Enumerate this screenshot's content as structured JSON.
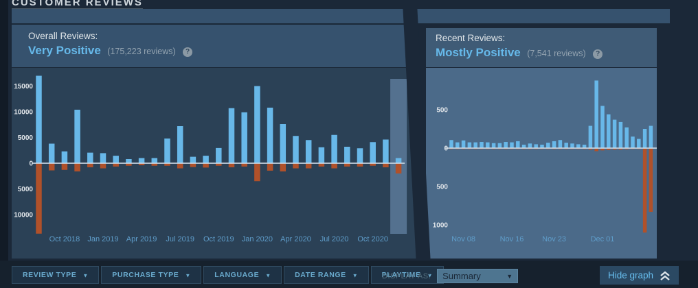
{
  "page": {
    "title": "CUSTOMER REVIEWS"
  },
  "overall_panel": {
    "label": "Overall Reviews:",
    "rating": "Very Positive",
    "count_text": "(175,223 reviews)",
    "help_glyph": "?"
  },
  "recent_panel": {
    "label": "Recent Reviews:",
    "rating": "Mostly Positive",
    "count_text": "(7,541 reviews)",
    "help_glyph": "?"
  },
  "chart_data": [
    {
      "type": "bar",
      "title": "Overall Reviews histogram",
      "x_unit": "month",
      "series": [
        {
          "name": "positive reviews",
          "color": "#68b8e9",
          "values": [
            17000,
            3800,
            2300,
            10400,
            2050,
            1950,
            1450,
            800,
            1000,
            1000,
            4800,
            7200,
            1250,
            1450,
            2950,
            10700,
            9900,
            15000,
            10800,
            7600,
            5300,
            4500,
            3100,
            5500,
            3200,
            2900,
            4100,
            4600,
            1000
          ]
        },
        {
          "name": "negative reviews",
          "color": "#b0512a",
          "values": [
            -13700,
            -1400,
            -1300,
            -1600,
            -800,
            -1000,
            -650,
            -500,
            -400,
            -500,
            -500,
            -1000,
            -750,
            -850,
            -500,
            -800,
            -650,
            -3500,
            -1450,
            -1600,
            -1000,
            -1000,
            -650,
            -1000,
            -650,
            -650,
            -500,
            -800,
            -2000
          ]
        }
      ],
      "x_ticks": [
        {
          "label": "Oct 2018",
          "bar_index": 2
        },
        {
          "label": "Jan 2019",
          "bar_index": 5
        },
        {
          "label": "Apr 2019",
          "bar_index": 8
        },
        {
          "label": "Jul 2019",
          "bar_index": 11
        },
        {
          "label": "Oct 2019",
          "bar_index": 14
        },
        {
          "label": "Jan 2020",
          "bar_index": 17
        },
        {
          "label": "Apr 2020",
          "bar_index": 20
        },
        {
          "label": "Jul 2020",
          "bar_index": 23
        },
        {
          "label": "Oct 2020",
          "bar_index": 26
        }
      ],
      "y_ticks": [
        {
          "value": 15000,
          "label": "15000"
        },
        {
          "value": 10000,
          "label": "10000"
        },
        {
          "value": 5000,
          "label": "5000"
        },
        {
          "value": 0,
          "label": "0"
        },
        {
          "value": -5000,
          "label": "5000"
        },
        {
          "value": -10000,
          "label": "10000"
        }
      ],
      "ylim": [
        -14200,
        18500
      ],
      "grid": false,
      "legend": "none",
      "highlight_last_bars": 1
    },
    {
      "type": "bar",
      "title": "Recent Reviews histogram",
      "x_unit": "day",
      "series": [
        {
          "name": "positive reviews",
          "color": "#68b8e9",
          "values": [
            105,
            75,
            100,
            75,
            75,
            80,
            75,
            65,
            65,
            80,
            75,
            90,
            45,
            60,
            50,
            45,
            70,
            90,
            105,
            70,
            60,
            50,
            45,
            290,
            880,
            550,
            440,
            370,
            340,
            270,
            150,
            120,
            250,
            290
          ]
        },
        {
          "name": "negative reviews",
          "color": "#b0512a",
          "values": [
            -12,
            -12,
            -12,
            -12,
            -12,
            -12,
            -12,
            -12,
            -12,
            -12,
            -12,
            -12,
            -12,
            -12,
            -12,
            -12,
            -12,
            -12,
            -12,
            -12,
            -12,
            -12,
            -12,
            -20,
            -40,
            -30,
            -25,
            -20,
            -20,
            -15,
            -12,
            -12,
            -1100,
            -830
          ]
        }
      ],
      "x_ticks": [
        {
          "label": "Nov 08",
          "bar_index": 2
        },
        {
          "label": "Nov 16",
          "bar_index": 10
        },
        {
          "label": "Nov 23",
          "bar_index": 17
        },
        {
          "label": "Dec 01",
          "bar_index": 25
        }
      ],
      "y_ticks": [
        {
          "value": 500,
          "label": "500"
        },
        {
          "value": 0,
          "label": "0"
        },
        {
          "value": -500,
          "label": "500"
        },
        {
          "value": -1000,
          "label": "1000"
        }
      ],
      "ylim": [
        -1150,
        950
      ],
      "grid": false,
      "legend": "none",
      "highlight_last_bars": 0
    }
  ],
  "toolbar": {
    "filters": [
      {
        "label": "REVIEW TYPE"
      },
      {
        "label": "PURCHASE TYPE"
      },
      {
        "label": "LANGUAGE"
      },
      {
        "label": "DATE RANGE"
      },
      {
        "label": "PLAYTIME"
      }
    ],
    "display_as_label": "DISPLAY AS:",
    "display_as_value": "Summary",
    "hide_graph_label": "Hide graph",
    "dropdown_arrow": "▼"
  },
  "colors": {
    "positive_bar": "#68b8e9",
    "negative_bar": "#b0512a",
    "rating_text": "#66b9ea",
    "axis_line": "#c8d6e3",
    "x_tick_text": "#5f9dca",
    "y_tick_text": "#e2e6ea",
    "highlight_band": "#54718f",
    "panel_header_bg": "#36526e",
    "overall_chart_bg": "#2b4156",
    "recent_chart_bg": "#4b6a89",
    "page_bg": "#1b2838"
  }
}
